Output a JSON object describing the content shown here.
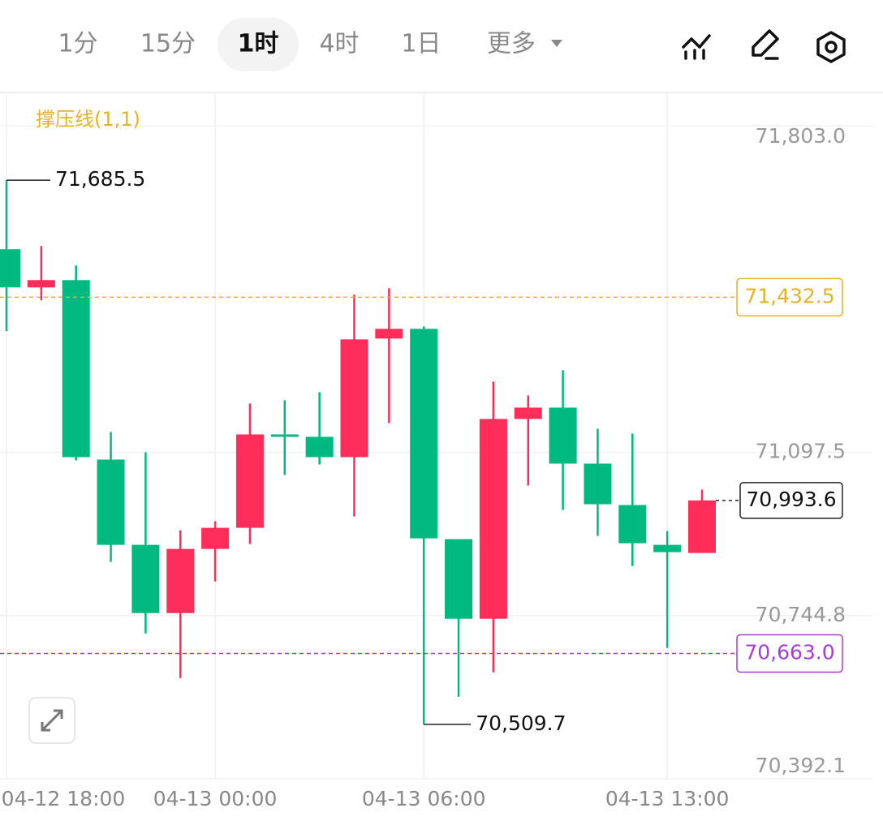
{
  "tabs": {
    "items": [
      "1分",
      "15分",
      "1时",
      "4时",
      "1日",
      "更多"
    ],
    "selected": 2
  },
  "chart_data": {
    "type": "candlestick",
    "indicator": "撑压线(1,1)",
    "up_color": "#fe2d5a",
    "down_color": "#00b97e",
    "categories": [
      "04-12 18:00",
      null,
      null,
      null,
      null,
      null,
      "04-13 00:00",
      null,
      null,
      null,
      null,
      null,
      "04-13 06:00",
      null,
      null,
      null,
      null,
      null,
      null,
      "04-13 13:00",
      null
    ],
    "open": [
      71536.3,
      71453.8,
      71469.6,
      71081.8,
      70897.6,
      70750.2,
      70888.8,
      70934.4,
      71136.2,
      71131.0,
      71087.1,
      71343.3,
      71364.3,
      70909.9,
      70737.9,
      71169.6,
      71194.1,
      71073.1,
      70983.6,
      70897.6,
      70880.0
    ],
    "high": [
      71685.5,
      71543.3,
      71501.2,
      71141.5,
      71097.6,
      70929.2,
      70948.5,
      71202.9,
      71209.9,
      71227.5,
      71438.0,
      71452.1,
      71369.6,
      70909.9,
      71250.3,
      71220.4,
      71274.8,
      71148.5,
      71138.0,
      70927.4,
      71016.9
    ],
    "low": [
      71359.1,
      71425.7,
      71080.1,
      70860.7,
      70706.3,
      70609.8,
      70818.6,
      70899.3,
      71048.5,
      71071.3,
      70959.0,
      71160.8,
      70509.7,
      70569.4,
      70622.1,
      71025.7,
      70973.0,
      70916.9,
      70852.0,
      70674.7,
      70880.0
    ],
    "close": [
      71453.8,
      71469.6,
      71087.1,
      70897.6,
      70750.2,
      70888.8,
      70934.4,
      71136.2,
      71131.0,
      71087.1,
      71341.5,
      71364.3,
      70911.6,
      70737.9,
      71169.6,
      71194.1,
      71073.1,
      70985.3,
      70901.1,
      70881.8,
      70993.6
    ],
    "ylim": [
      70392.1,
      71873.2
    ],
    "yticks": [
      {
        "value": 71803.0,
        "label": "71,803.0"
      },
      {
        "value": 71097.5,
        "label": "71,097.5"
      },
      {
        "value": 70744.8,
        "label": "70,744.8"
      },
      {
        "value": 70392.1,
        "label": "70,392.1"
      }
    ],
    "grid": true,
    "high_label": {
      "value": 71685.5,
      "label": "71,685.5"
    },
    "low_label": {
      "value": 70509.7,
      "label": "70,509.7"
    },
    "resistance": {
      "value": 71432.5,
      "label": "71,432.5",
      "color": "#e6b422"
    },
    "support": {
      "value": 70663.0,
      "label": "70,663.0",
      "color": "#a53fd0"
    },
    "last_price": {
      "value": 70993.6,
      "label": "70,993.6"
    }
  }
}
